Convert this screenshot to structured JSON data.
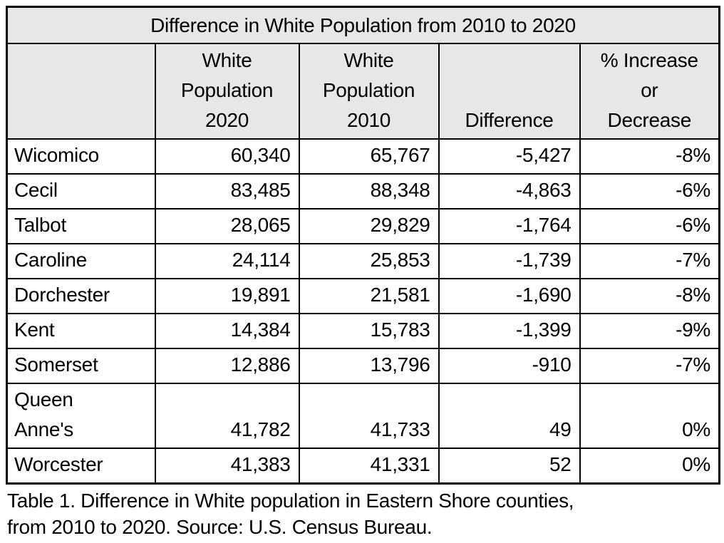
{
  "page": {
    "title": "Difference in White Population from 2010 to 2020",
    "caption": "Table 1. Difference in White population in Eastern Shore counties,\nfrom 2010 to 2020. Source: U.S. Census Bureau."
  },
  "table": {
    "headers": {
      "county": "",
      "pop2020": "White\nPopulation\n2020",
      "pop2010": "White\nPopulation\n2010",
      "difference": "Difference",
      "pct": "% Increase\nor\nDecrease"
    },
    "rows": [
      {
        "county": "Wicomico",
        "pop2020": "60,340",
        "pop2010": "65,767",
        "difference": "-5,427",
        "pct": "-8%"
      },
      {
        "county": "Cecil",
        "pop2020": "83,485",
        "pop2010": "88,348",
        "difference": "-4,863",
        "pct": "-6%"
      },
      {
        "county": "Talbot",
        "pop2020": "28,065",
        "pop2010": "29,829",
        "difference": "-1,764",
        "pct": "-6%"
      },
      {
        "county": "Caroline",
        "pop2020": "24,114",
        "pop2010": "25,853",
        "difference": "-1,739",
        "pct": "-7%"
      },
      {
        "county": "Dorchester",
        "pop2020": "19,891",
        "pop2010": "21,581",
        "difference": "-1,690",
        "pct": "-8%"
      },
      {
        "county": "Kent",
        "pop2020": "14,384",
        "pop2010": "15,783",
        "difference": "-1,399",
        "pct": "-9%"
      },
      {
        "county": "Somerset",
        "pop2020": "12,886",
        "pop2010": "13,796",
        "difference": "-910",
        "pct": "-7%"
      },
      {
        "county": "Queen\nAnne's",
        "pop2020": "41,782",
        "pop2010": "41,733",
        "difference": "49",
        "pct": "0%"
      },
      {
        "county": "Worcester",
        "pop2020": "41,383",
        "pop2010": "41,331",
        "difference": "52",
        "pct": "0%"
      }
    ]
  },
  "colors": {
    "header_bg": "#e7e7e7",
    "border": "#000000",
    "text": "#000000",
    "background": "#ffffff"
  }
}
